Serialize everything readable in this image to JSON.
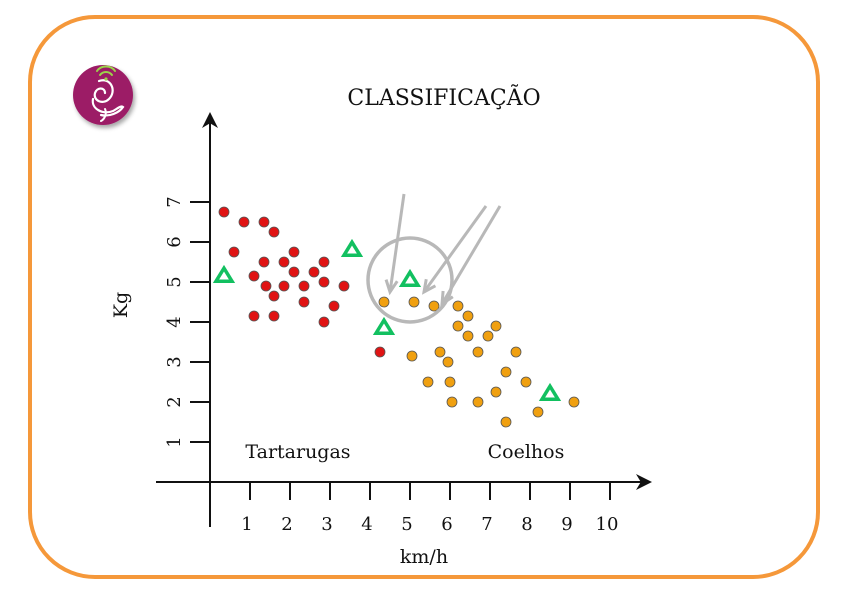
{
  "chart_data": {
    "type": "scatter",
    "title": "CLASSIFICAÇÃO",
    "xlabel": "km/h",
    "ylabel": "Kg",
    "x_ticks": [
      1,
      2,
      3,
      4,
      5,
      6,
      7,
      8,
      9,
      10
    ],
    "y_ticks": [
      1,
      2,
      3,
      4,
      5,
      6,
      7
    ],
    "grid": false,
    "annotations": [
      {
        "text": "Tartarugas",
        "x": 2.2,
        "y": 0.6
      },
      {
        "text": "Coelhos",
        "x": 7.9,
        "y": 0.6
      }
    ],
    "series": [
      {
        "marker": "circle",
        "color": "#e01414",
        "points": [
          [
            0.35,
            6.75
          ],
          [
            0.6,
            5.75
          ],
          [
            0.85,
            6.5
          ],
          [
            1.1,
            5.15
          ],
          [
            1.1,
            4.15
          ],
          [
            1.35,
            6.5
          ],
          [
            1.35,
            5.5
          ],
          [
            1.4,
            4.9
          ],
          [
            1.6,
            6.25
          ],
          [
            1.6,
            4.65
          ],
          [
            1.6,
            4.15
          ],
          [
            1.85,
            5.5
          ],
          [
            1.85,
            4.9
          ],
          [
            2.1,
            5.75
          ],
          [
            2.1,
            5.25
          ],
          [
            2.35,
            4.9
          ],
          [
            2.35,
            4.5
          ],
          [
            2.6,
            5.25
          ],
          [
            2.85,
            5.5
          ],
          [
            2.85,
            5.0
          ],
          [
            2.85,
            4.0
          ],
          [
            3.1,
            4.4
          ],
          [
            3.35,
            4.9
          ],
          [
            4.25,
            3.25
          ]
        ]
      },
      {
        "marker": "circle",
        "color": "#f0a010",
        "points": [
          [
            4.35,
            4.5
          ],
          [
            5.1,
            4.5
          ],
          [
            5.6,
            4.4
          ],
          [
            5.05,
            3.15
          ],
          [
            5.45,
            2.5
          ],
          [
            5.75,
            3.25
          ],
          [
            5.95,
            3.0
          ],
          [
            6.0,
            2.5
          ],
          [
            6.05,
            2.0
          ],
          [
            6.2,
            4.4
          ],
          [
            6.2,
            3.9
          ],
          [
            6.45,
            4.15
          ],
          [
            6.45,
            3.65
          ],
          [
            6.7,
            3.25
          ],
          [
            6.7,
            2.0
          ],
          [
            6.95,
            3.65
          ],
          [
            7.15,
            3.9
          ],
          [
            7.15,
            2.25
          ],
          [
            7.4,
            2.75
          ],
          [
            7.4,
            1.5
          ],
          [
            7.65,
            3.25
          ],
          [
            7.9,
            2.5
          ],
          [
            8.2,
            1.75
          ],
          [
            9.1,
            2.0
          ]
        ]
      },
      {
        "marker": "triangle",
        "color": "#12c060",
        "points": [
          [
            0.35,
            5.15
          ],
          [
            3.55,
            5.8
          ],
          [
            4.35,
            3.85
          ],
          [
            5.0,
            5.05
          ],
          [
            8.5,
            2.2
          ]
        ]
      }
    ],
    "highlight": {
      "circle": {
        "x": 5.0,
        "y": 5.05,
        "r": 1.05
      },
      "arrows": [
        {
          "from": [
            4.85,
            7.2
          ],
          "to": [
            4.5,
            4.75
          ]
        },
        {
          "from": [
            6.9,
            6.9
          ],
          "to": [
            5.35,
            4.75
          ]
        },
        {
          "from": [
            7.25,
            6.9
          ],
          "to": [
            5.8,
            4.45
          ]
        }
      ]
    }
  },
  "colors": {
    "frame": "#f5983a",
    "highlight": "#b8b8b8",
    "logo": "#9c1f66"
  },
  "logo": {
    "icon": "spiral-ear-icon"
  }
}
